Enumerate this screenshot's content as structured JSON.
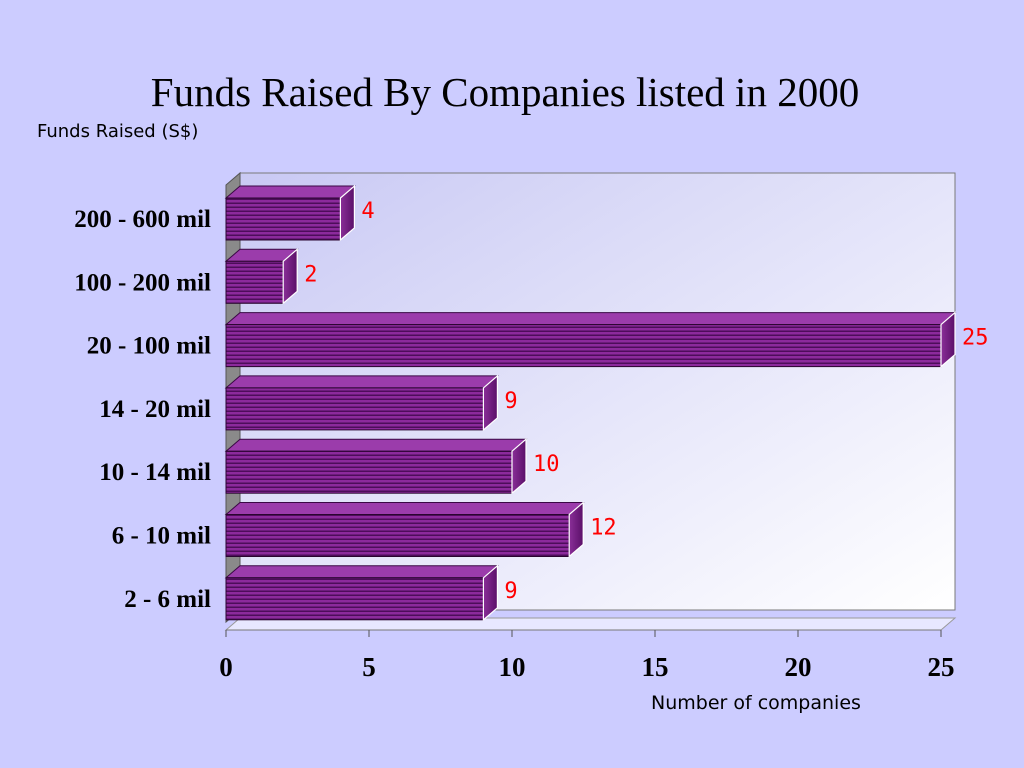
{
  "chart_data": {
    "type": "bar",
    "orientation": "horizontal",
    "title": "Funds Raised By Companies listed in 2000",
    "ylabel": "Funds Raised (S$)",
    "xlabel": "Number of companies",
    "categories": [
      "200 - 600 mil",
      "100 - 200 mil",
      "20 - 100 mil",
      "14 - 20 mil",
      "10 - 14 mil",
      "6 - 10 mil",
      "2 - 6 mil"
    ],
    "values": [
      4,
      2,
      25,
      9,
      10,
      12,
      9
    ],
    "data_labels": [
      "4",
      "2",
      "25",
      "9",
      "10",
      "12",
      "9"
    ],
    "xlim": [
      0,
      25
    ],
    "xticks": [
      "0",
      "5",
      "10",
      "15",
      "20",
      "25"
    ],
    "grid": false,
    "legend": "none",
    "colors": {
      "bar": "#7a1a8a",
      "bar_light": "#a040b0",
      "bar_dark": "#3a0845",
      "data_label": "#ff0000",
      "background": "#ccccff"
    }
  }
}
